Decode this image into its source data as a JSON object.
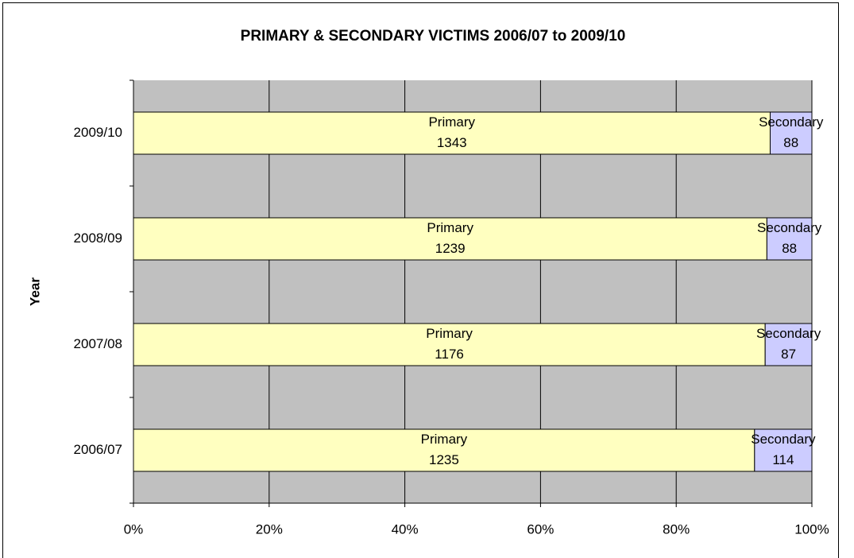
{
  "chart_data": {
    "type": "bar",
    "orientation": "horizontal",
    "stacking": "percent",
    "title": "PRIMARY & SECONDARY VICTIMS 2006/07 to 2009/10",
    "y_label": "Year",
    "categories": [
      "2006/07",
      "2007/08",
      "2008/09",
      "2009/10"
    ],
    "series": [
      {
        "name": "Primary",
        "color": "#ffffc0",
        "values": [
          1235,
          1176,
          1239,
          1343
        ]
      },
      {
        "name": "Secondary",
        "color": "#ccccff",
        "values": [
          114,
          87,
          88,
          88
        ]
      }
    ],
    "xlim": [
      0,
      100
    ],
    "xticks": [
      {
        "value": 0,
        "label": "0%"
      },
      {
        "value": 20,
        "label": "20%"
      },
      {
        "value": 40,
        "label": "40%"
      },
      {
        "value": 60,
        "label": "60%"
      },
      {
        "value": 80,
        "label": "80%"
      },
      {
        "value": 100,
        "label": "100%"
      }
    ],
    "grid": true,
    "background": "#c0c0c0"
  }
}
